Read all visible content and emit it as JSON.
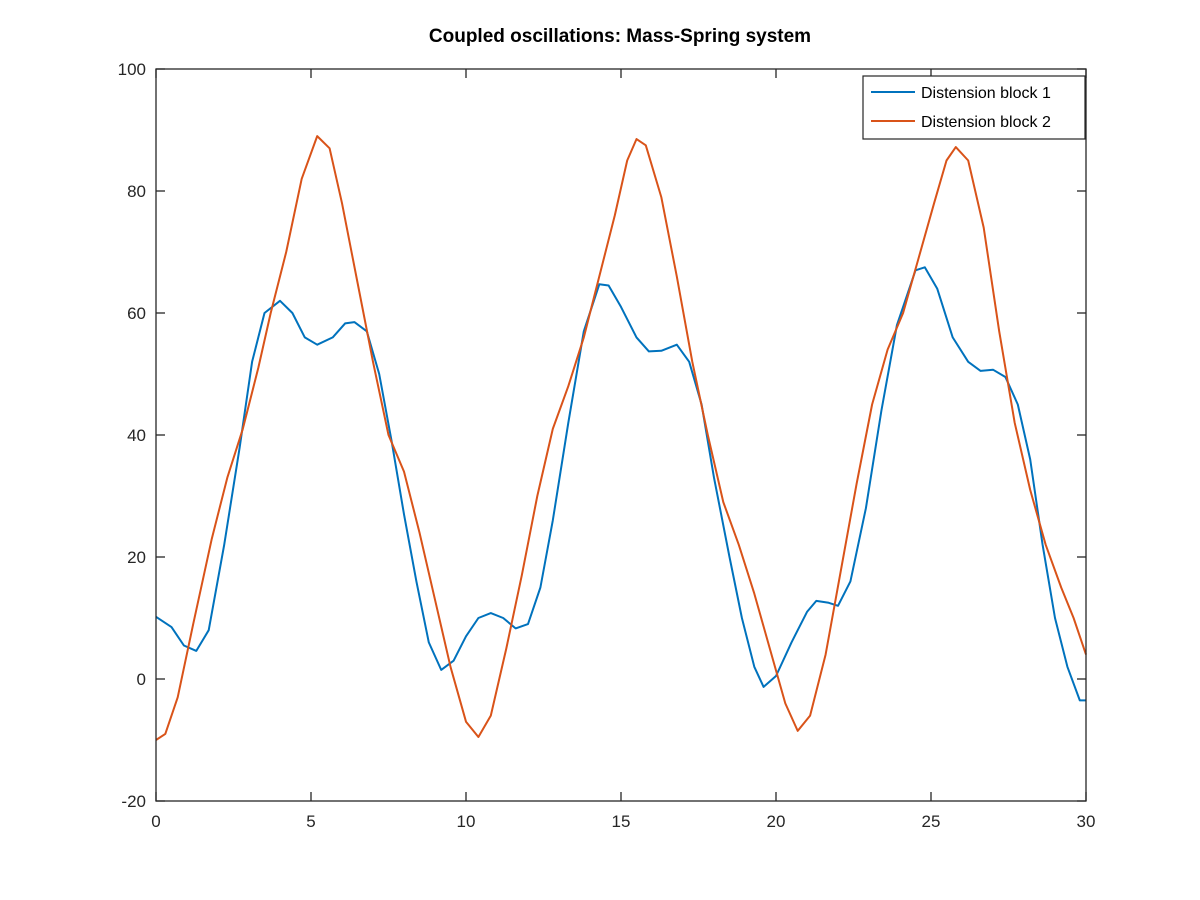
{
  "chart_data": {
    "type": "line",
    "title": "Coupled oscillations: Mass-Spring system",
    "xlabel": "",
    "ylabel": "",
    "xlim": [
      0,
      30
    ],
    "ylim": [
      -20,
      100
    ],
    "x_ticks": [
      0,
      5,
      10,
      15,
      20,
      25,
      30
    ],
    "x_tick_labels": [
      "0",
      "5",
      "10",
      "15",
      "20",
      "25",
      "30"
    ],
    "y_ticks": [
      -20,
      0,
      20,
      40,
      60,
      80,
      100
    ],
    "y_tick_labels": [
      "-20",
      "0",
      "20",
      "40",
      "60",
      "80",
      "100"
    ],
    "grid": false,
    "legend_position": "top-right",
    "series": [
      {
        "name": "Distension block 1",
        "color": "#0072bd",
        "points": [
          [
            0,
            10.2
          ],
          [
            0.5,
            8.5
          ],
          [
            0.9,
            5.5
          ],
          [
            1.3,
            4.6
          ],
          [
            1.7,
            8
          ],
          [
            2.2,
            22
          ],
          [
            2.7,
            38
          ],
          [
            3.1,
            52
          ],
          [
            3.5,
            60
          ],
          [
            4.0,
            62
          ],
          [
            4.4,
            60
          ],
          [
            4.8,
            56
          ],
          [
            5.2,
            54.8
          ],
          [
            5.7,
            56
          ],
          [
            6.1,
            58.3
          ],
          [
            6.4,
            58.5
          ],
          [
            6.8,
            57
          ],
          [
            7.2,
            50
          ],
          [
            7.6,
            39
          ],
          [
            8.0,
            27
          ],
          [
            8.4,
            16
          ],
          [
            8.8,
            6
          ],
          [
            9.2,
            1.5
          ],
          [
            9.6,
            3
          ],
          [
            10.0,
            7
          ],
          [
            10.4,
            10
          ],
          [
            10.8,
            10.8
          ],
          [
            11.2,
            10
          ],
          [
            11.6,
            8.3
          ],
          [
            12.0,
            9
          ],
          [
            12.4,
            15
          ],
          [
            12.8,
            26
          ],
          [
            13.3,
            42
          ],
          [
            13.8,
            57
          ],
          [
            14.3,
            64.7
          ],
          [
            14.6,
            64.5
          ],
          [
            15.0,
            61
          ],
          [
            15.5,
            56
          ],
          [
            15.9,
            53.7
          ],
          [
            16.3,
            53.8
          ],
          [
            16.8,
            54.8
          ],
          [
            17.2,
            52
          ],
          [
            17.6,
            45
          ],
          [
            18.0,
            33
          ],
          [
            18.5,
            20
          ],
          [
            18.9,
            10
          ],
          [
            19.3,
            2
          ],
          [
            19.6,
            -1.3
          ],
          [
            20.0,
            0.5
          ],
          [
            20.5,
            6
          ],
          [
            21.0,
            11
          ],
          [
            21.3,
            12.8
          ],
          [
            21.7,
            12.5
          ],
          [
            22.0,
            12
          ],
          [
            22.4,
            16
          ],
          [
            22.9,
            28
          ],
          [
            23.4,
            44
          ],
          [
            23.9,
            58
          ],
          [
            24.5,
            67
          ],
          [
            24.8,
            67.5
          ],
          [
            25.2,
            64
          ],
          [
            25.7,
            56
          ],
          [
            26.2,
            52
          ],
          [
            26.6,
            50.5
          ],
          [
            27.0,
            50.7
          ],
          [
            27.4,
            49.5
          ],
          [
            27.8,
            45
          ],
          [
            28.2,
            36
          ],
          [
            28.6,
            22
          ],
          [
            29.0,
            10
          ],
          [
            29.4,
            2
          ],
          [
            29.8,
            -3.5
          ],
          [
            30.0,
            -3.5
          ]
        ]
      },
      {
        "name": "Distension block 2",
        "color": "#d95319",
        "points": [
          [
            0,
            -10
          ],
          [
            0.3,
            -9
          ],
          [
            0.7,
            -3
          ],
          [
            1.2,
            9
          ],
          [
            1.8,
            23
          ],
          [
            2.3,
            33
          ],
          [
            2.8,
            41
          ],
          [
            3.3,
            51
          ],
          [
            3.7,
            60
          ],
          [
            4.2,
            70
          ],
          [
            4.7,
            82
          ],
          [
            5.2,
            89
          ],
          [
            5.6,
            87
          ],
          [
            6.0,
            78
          ],
          [
            6.5,
            65
          ],
          [
            7.0,
            52
          ],
          [
            7.5,
            40
          ],
          [
            8.0,
            34
          ],
          [
            8.5,
            24
          ],
          [
            9.0,
            13
          ],
          [
            9.5,
            2
          ],
          [
            10.0,
            -7
          ],
          [
            10.4,
            -9.5
          ],
          [
            10.8,
            -6
          ],
          [
            11.3,
            5
          ],
          [
            11.8,
            17
          ],
          [
            12.3,
            30
          ],
          [
            12.8,
            41
          ],
          [
            13.3,
            48
          ],
          [
            13.8,
            56
          ],
          [
            14.3,
            66
          ],
          [
            14.8,
            76
          ],
          [
            15.2,
            85
          ],
          [
            15.5,
            88.5
          ],
          [
            15.8,
            87.5
          ],
          [
            16.3,
            79
          ],
          [
            16.8,
            66
          ],
          [
            17.3,
            52
          ],
          [
            17.8,
            40
          ],
          [
            18.3,
            29
          ],
          [
            18.8,
            22
          ],
          [
            19.3,
            14
          ],
          [
            19.8,
            5
          ],
          [
            20.3,
            -4
          ],
          [
            20.7,
            -8.5
          ],
          [
            21.1,
            -6
          ],
          [
            21.6,
            4
          ],
          [
            22.1,
            18
          ],
          [
            22.6,
            32
          ],
          [
            23.1,
            45
          ],
          [
            23.6,
            54
          ],
          [
            24.1,
            60
          ],
          [
            24.6,
            69
          ],
          [
            25.1,
            78
          ],
          [
            25.5,
            85
          ],
          [
            25.8,
            87.2
          ],
          [
            26.2,
            85
          ],
          [
            26.7,
            74
          ],
          [
            27.2,
            57
          ],
          [
            27.7,
            42
          ],
          [
            28.2,
            31
          ],
          [
            28.7,
            22
          ],
          [
            29.2,
            15
          ],
          [
            29.6,
            10
          ],
          [
            30.0,
            4
          ]
        ]
      }
    ]
  }
}
